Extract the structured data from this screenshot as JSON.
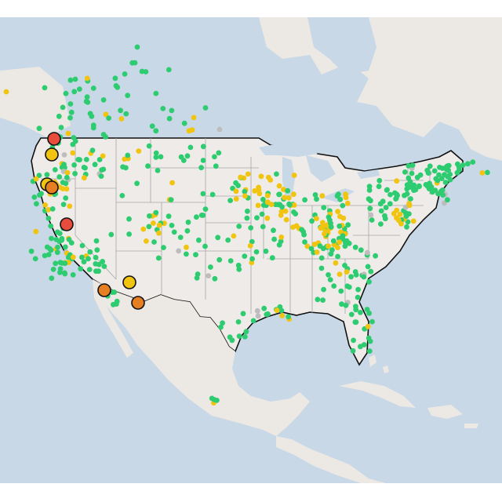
{
  "map": {
    "colors": {
      "water": "#c8d8e6",
      "land": "#ece8e4",
      "land_us": "#eeebe8",
      "state_border": "#a8a8a8",
      "country_border": "#111111",
      "station_green": "#2ecc71",
      "station_yellow": "#f1c40f",
      "station_orange": "#e67e22",
      "station_red": "#e74c3c",
      "station_gray": "#bdbdbd"
    },
    "legend_levels": [
      "green",
      "yellow",
      "orange",
      "red",
      "gray"
    ]
  }
}
